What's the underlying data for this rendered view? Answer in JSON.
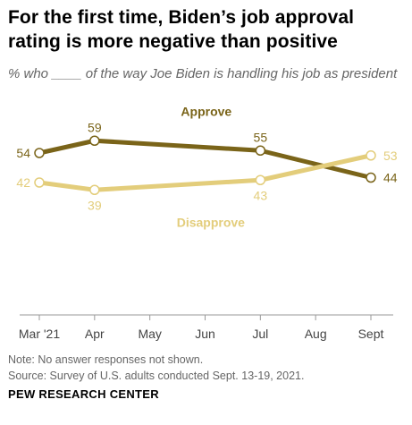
{
  "title": "For the first time, Biden’s job approval rating is more negative than positive",
  "subtitle": "% who ____ of the way Joe Biden is handling his job as president",
  "note": "Note: No answer responses not shown.",
  "source": "Source: Survey of U.S. adults conducted Sept. 13-19, 2021.",
  "org": "PEW RESEARCH CENTER",
  "colors": {
    "approve": "#7a6419",
    "disapprove": "#e3cd7b",
    "axis": "#999999",
    "tick_text": "#444444"
  },
  "chart_data": {
    "type": "line",
    "categories": [
      "Mar '21",
      "Apr",
      "May",
      "Jun",
      "Jul",
      "Aug",
      "Sept"
    ],
    "series": [
      {
        "name": "Approve",
        "points": [
          {
            "x": "Mar '21",
            "y": 54
          },
          {
            "x": "Apr",
            "y": 59
          },
          {
            "x": "Jul",
            "y": 55
          },
          {
            "x": "Sept",
            "y": 44
          }
        ]
      },
      {
        "name": "Disapprove",
        "points": [
          {
            "x": "Mar '21",
            "y": 42
          },
          {
            "x": "Apr",
            "y": 39
          },
          {
            "x": "Jul",
            "y": 43
          },
          {
            "x": "Sept",
            "y": 53
          }
        ]
      }
    ],
    "legend": "inline"
  }
}
